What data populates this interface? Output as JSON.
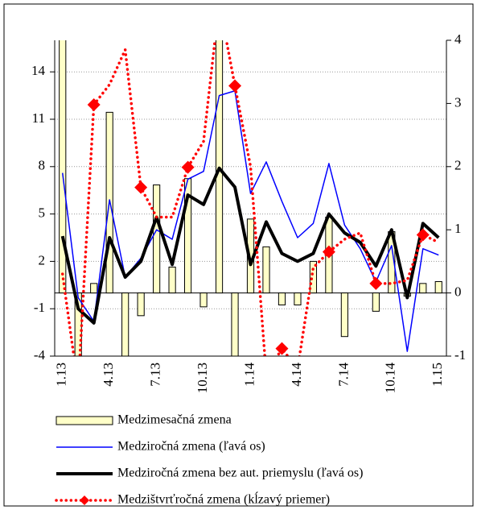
{
  "chart_data": {
    "type": "combo",
    "categories": [
      "1.13",
      null,
      null,
      "4.13",
      null,
      null,
      "7.13",
      null,
      null,
      "10.13",
      null,
      null,
      "1.14",
      null,
      null,
      "4.14",
      null,
      null,
      "7.14",
      null,
      null,
      "10.14",
      null,
      null,
      "1.15"
    ],
    "ylim": [
      -4,
      16
    ],
    "yticks": [
      -4,
      -1,
      2,
      5,
      8,
      11,
      14
    ],
    "y2lim": [
      -1,
      4
    ],
    "y2ticks": [
      -1,
      0,
      1,
      2,
      3,
      4
    ],
    "grid": true,
    "legend": "bottom",
    "series": [
      {
        "name": "Medzimesačná zmena",
        "type": "bar",
        "axis": "y2",
        "color": "#ffffc8",
        "values": [
          4.5,
          -1.3,
          0.15,
          2.86,
          -1.2,
          -0.36,
          1.71,
          0.41,
          1.81,
          -0.22,
          4.3,
          -1.3,
          1.17,
          0.73,
          -0.19,
          -0.19,
          0.5,
          1.2,
          -0.69,
          0.0,
          -0.29,
          0.97,
          -0.05,
          0.15,
          0.18
        ]
      },
      {
        "name": "Medziročná zmena (ľavá os)",
        "type": "line",
        "color": "#0000ff",
        "width": 1.5,
        "values": [
          7.6,
          -0.3,
          -1.8,
          5.9,
          1.0,
          2.2,
          4.0,
          3.4,
          7.2,
          7.7,
          12.5,
          12.8,
          6.3,
          8.3,
          5.8,
          3.5,
          4.4,
          8.2,
          4.3,
          2.8,
          0.7,
          3.0,
          -3.7,
          2.8,
          2.4
        ]
      },
      {
        "name": "Medziročná zmena bez aut. priemyslu (ľavá os)",
        "type": "line",
        "color": "#000000",
        "width": 4,
        "values": [
          3.6,
          -1.0,
          -1.9,
          3.5,
          1.0,
          2.0,
          4.8,
          1.8,
          6.2,
          5.6,
          7.9,
          6.7,
          1.8,
          4.5,
          2.5,
          2.0,
          2.5,
          5.0,
          3.8,
          3.2,
          1.7,
          4.0,
          -0.3,
          4.4,
          3.5
        ]
      },
      {
        "name": "Medzištvrťročná zmena (kĺzavý priemer)",
        "type": "line",
        "axis": "y2",
        "color": "#ff0000",
        "width": 3.5,
        "dashed": true,
        "marker": "diamond",
        "marker_every": 3,
        "marker_offset": 2,
        "values": [
          0.3,
          -1.5,
          2.98,
          3.3,
          3.85,
          1.67,
          1.2,
          1.2,
          1.99,
          2.4,
          4.6,
          3.28,
          2.0,
          -1.3,
          -0.88,
          -1.2,
          0.4,
          0.65,
          0.85,
          0.95,
          0.15,
          0.15,
          0.2,
          0.92,
          0.8
        ]
      }
    ]
  }
}
